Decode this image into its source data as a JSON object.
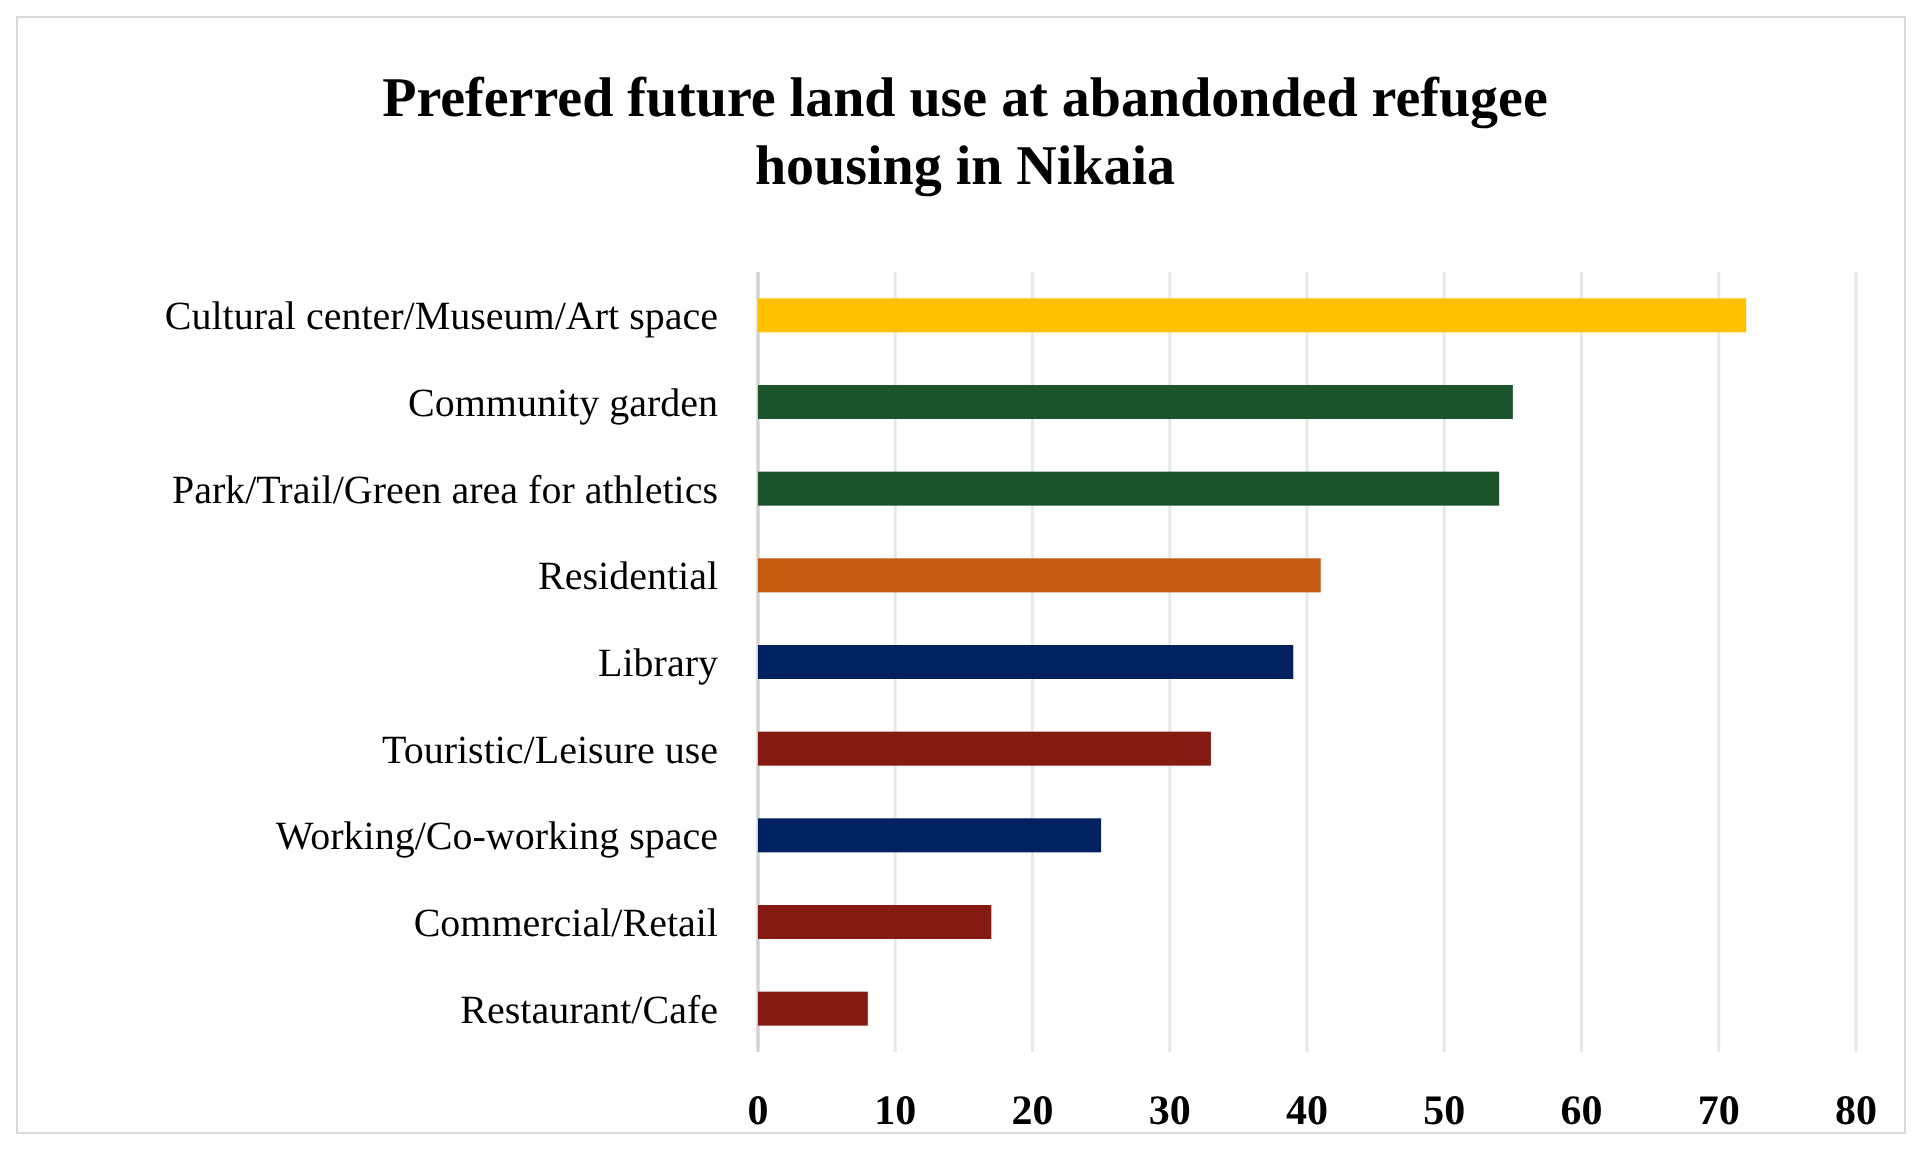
{
  "chart_data": {
    "type": "bar",
    "orientation": "horizontal",
    "title": "Preferred future land use at abandonded refugee housing in Nikaia",
    "categories": [
      "Cultural center/Museum/Art space",
      "Community garden",
      "Park/Trail/Green area for athletics",
      "Residential",
      "Library",
      "Touristic/Leisure use",
      "Working/Co-working space",
      "Commercial/Retail",
      "Restaurant/Cafe"
    ],
    "values": [
      72,
      55,
      54,
      41,
      39,
      33,
      25,
      17,
      8
    ],
    "colors": [
      "#ffc000",
      "#1c542c",
      "#1c542c",
      "#c55a11",
      "#002060",
      "#841a12",
      "#002060",
      "#841a12",
      "#841a12"
    ],
    "xlim": [
      0,
      80
    ],
    "xticks": [
      0,
      10,
      20,
      30,
      40,
      50,
      60,
      70,
      80
    ],
    "grid": "x"
  }
}
